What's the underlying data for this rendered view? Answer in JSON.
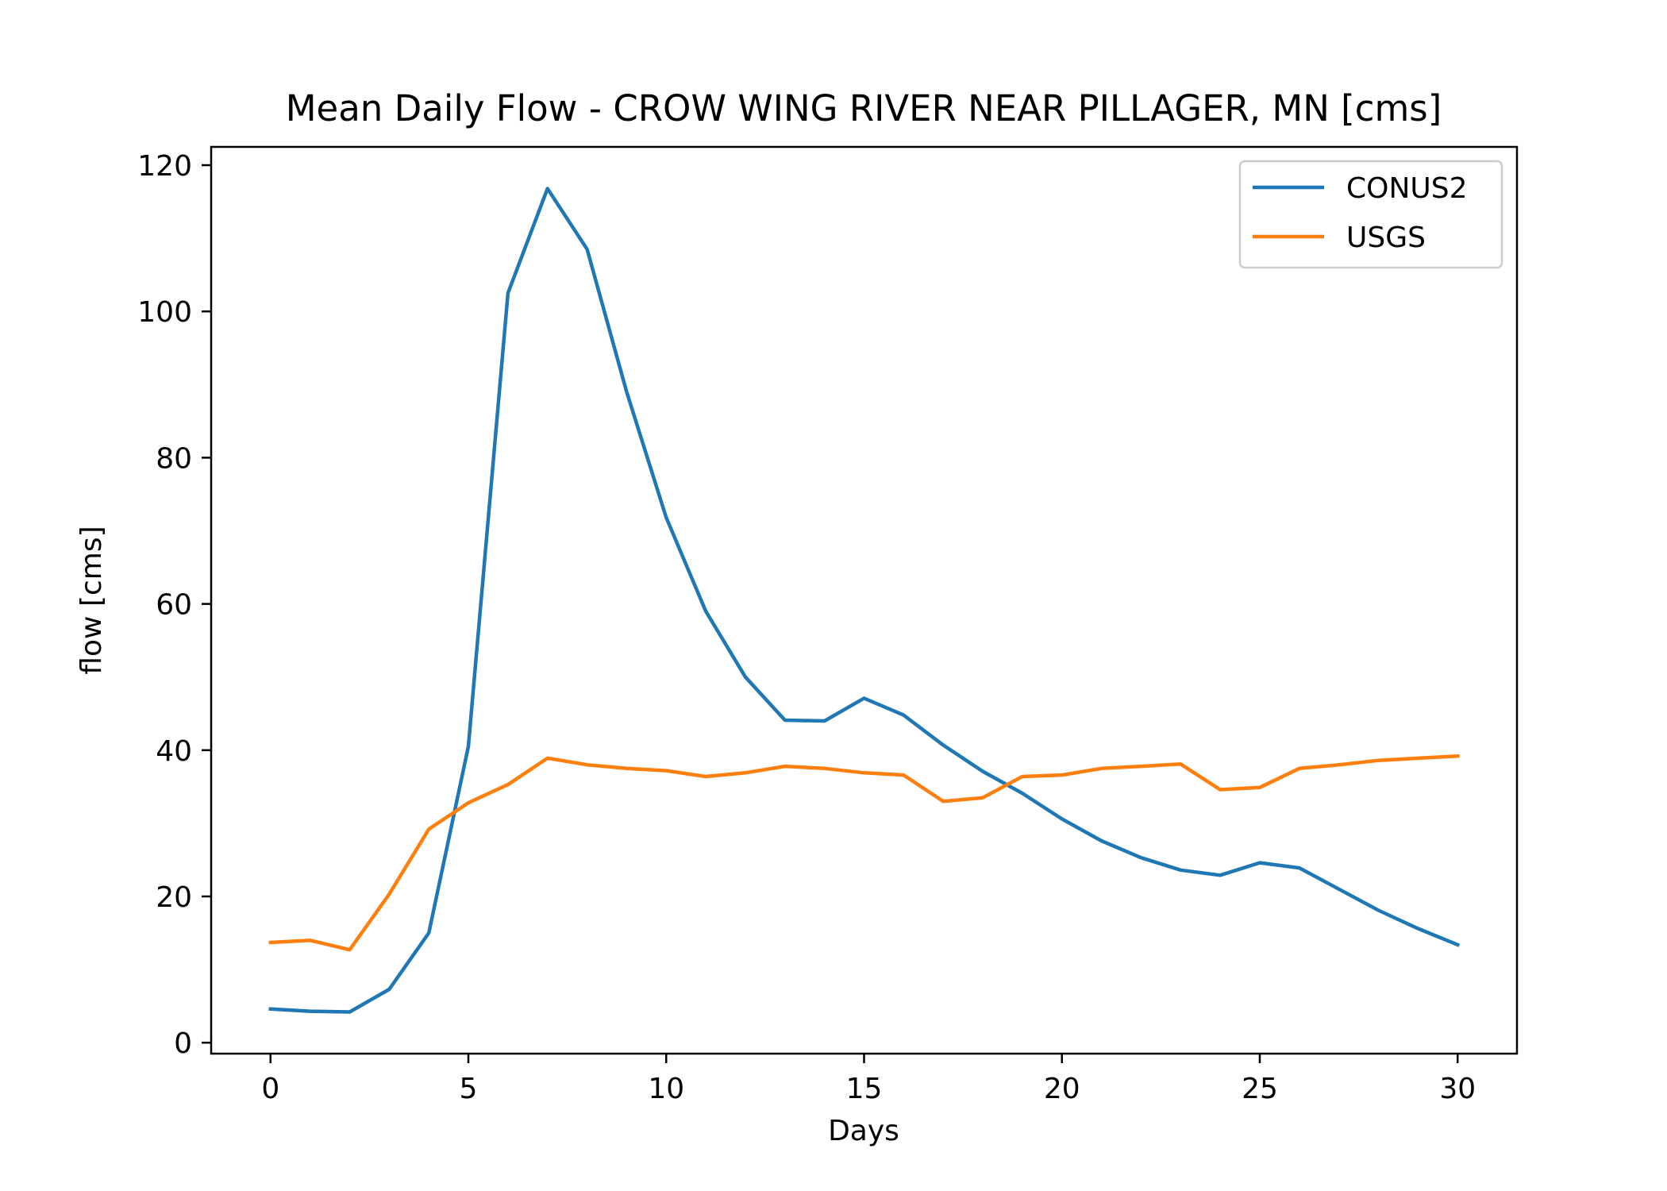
{
  "chart_data": {
    "type": "line",
    "title": "Mean Daily Flow - CROW WING RIVER NEAR PILLAGER, MN [cms]",
    "xlabel": "Days",
    "ylabel": "flow [cms]",
    "xlim": [
      -1.5,
      31.5
    ],
    "ylim": [
      -1.5,
      122.5
    ],
    "x_ticks": [
      0,
      5,
      10,
      15,
      20,
      25,
      30
    ],
    "y_ticks": [
      0,
      20,
      40,
      60,
      80,
      100,
      120
    ],
    "grid": false,
    "legend_position": "top-right",
    "x": [
      0,
      1,
      2,
      3,
      4,
      5,
      6,
      7,
      8,
      9,
      10,
      11,
      12,
      13,
      14,
      15,
      16,
      17,
      18,
      19,
      20,
      21,
      22,
      23,
      24,
      25,
      26,
      27,
      28,
      29,
      30
    ],
    "series": [
      {
        "name": "CONUS2",
        "color": "#1f77b4",
        "values": [
          4.6,
          4.3,
          4.2,
          7.3,
          15.0,
          40.5,
          102.5,
          116.8,
          108.5,
          89.0,
          71.8,
          59.0,
          50.0,
          44.1,
          44.0,
          47.1,
          44.8,
          40.7,
          37.1,
          34.1,
          30.6,
          27.6,
          25.3,
          23.6,
          22.9,
          24.6,
          23.9,
          21.0,
          18.1,
          15.6,
          13.4
        ]
      },
      {
        "name": "USGS",
        "color": "#ff7f0e",
        "values": [
          13.7,
          14.0,
          12.7,
          20.3,
          29.2,
          32.8,
          35.3,
          38.9,
          38.0,
          37.5,
          37.2,
          36.4,
          36.9,
          37.8,
          37.5,
          36.9,
          36.6,
          33.0,
          33.5,
          36.4,
          36.6,
          37.5,
          37.8,
          38.1,
          34.6,
          34.9,
          37.5,
          38.0,
          38.6,
          38.9,
          39.2
        ]
      }
    ]
  }
}
